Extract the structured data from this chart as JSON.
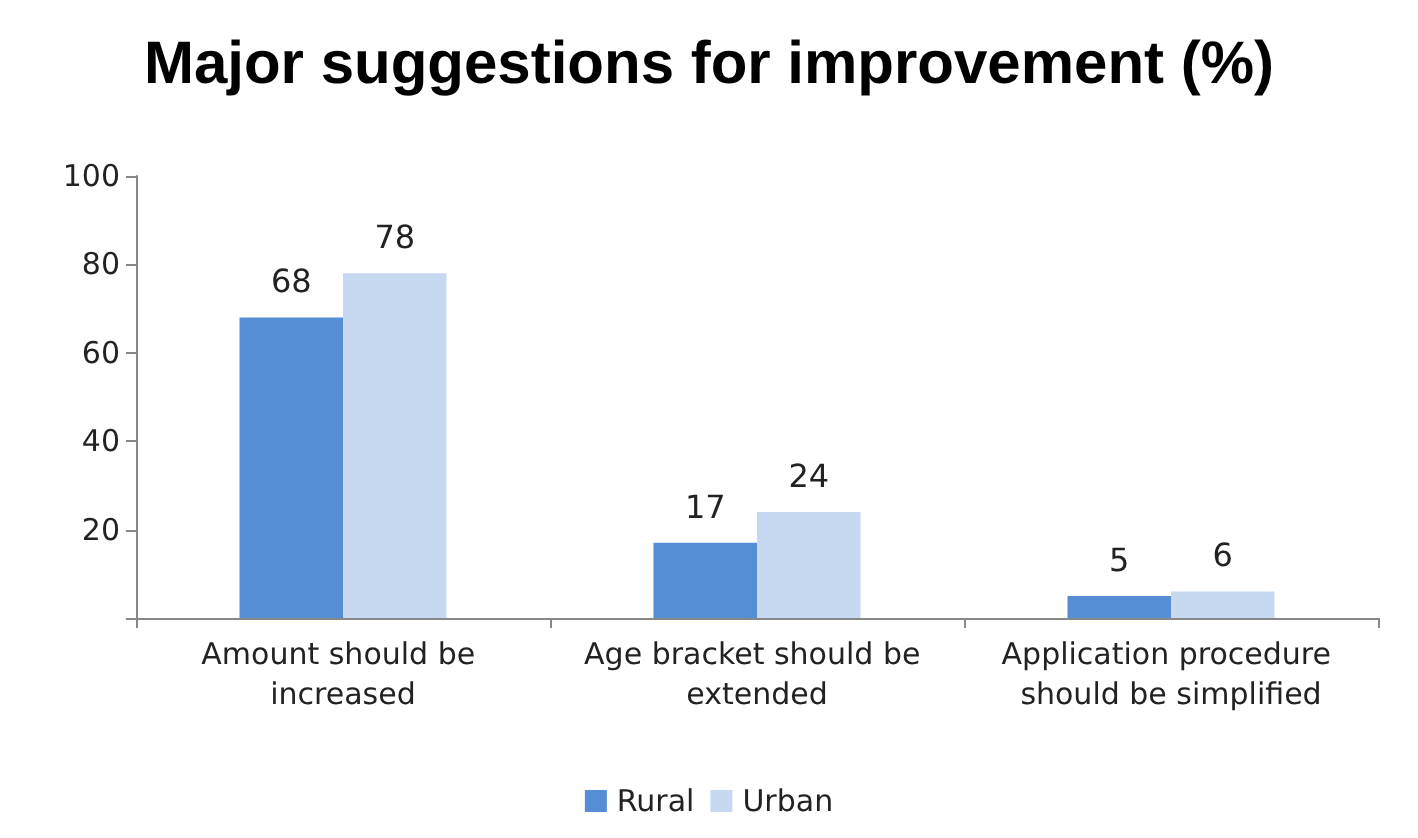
{
  "chart_data": {
    "type": "bar",
    "title": "Major suggestions for improvement (%)",
    "categories": [
      "Amount should be increased",
      "Age bracket should be extended",
      "Application procedure should be simplified"
    ],
    "series": [
      {
        "name": "Rural",
        "color": "#558ed5",
        "values": [
          68,
          17,
          5
        ]
      },
      {
        "name": "Urban",
        "color": "#c6d9f1",
        "values": [
          78,
          24,
          6
        ]
      }
    ],
    "ylim": [
      0,
      100
    ],
    "yticks": [
      {
        "value": 0,
        "label": null
      },
      20,
      40,
      60,
      80,
      100
    ],
    "grid": false,
    "legend": "bottom",
    "data_labels": true
  }
}
